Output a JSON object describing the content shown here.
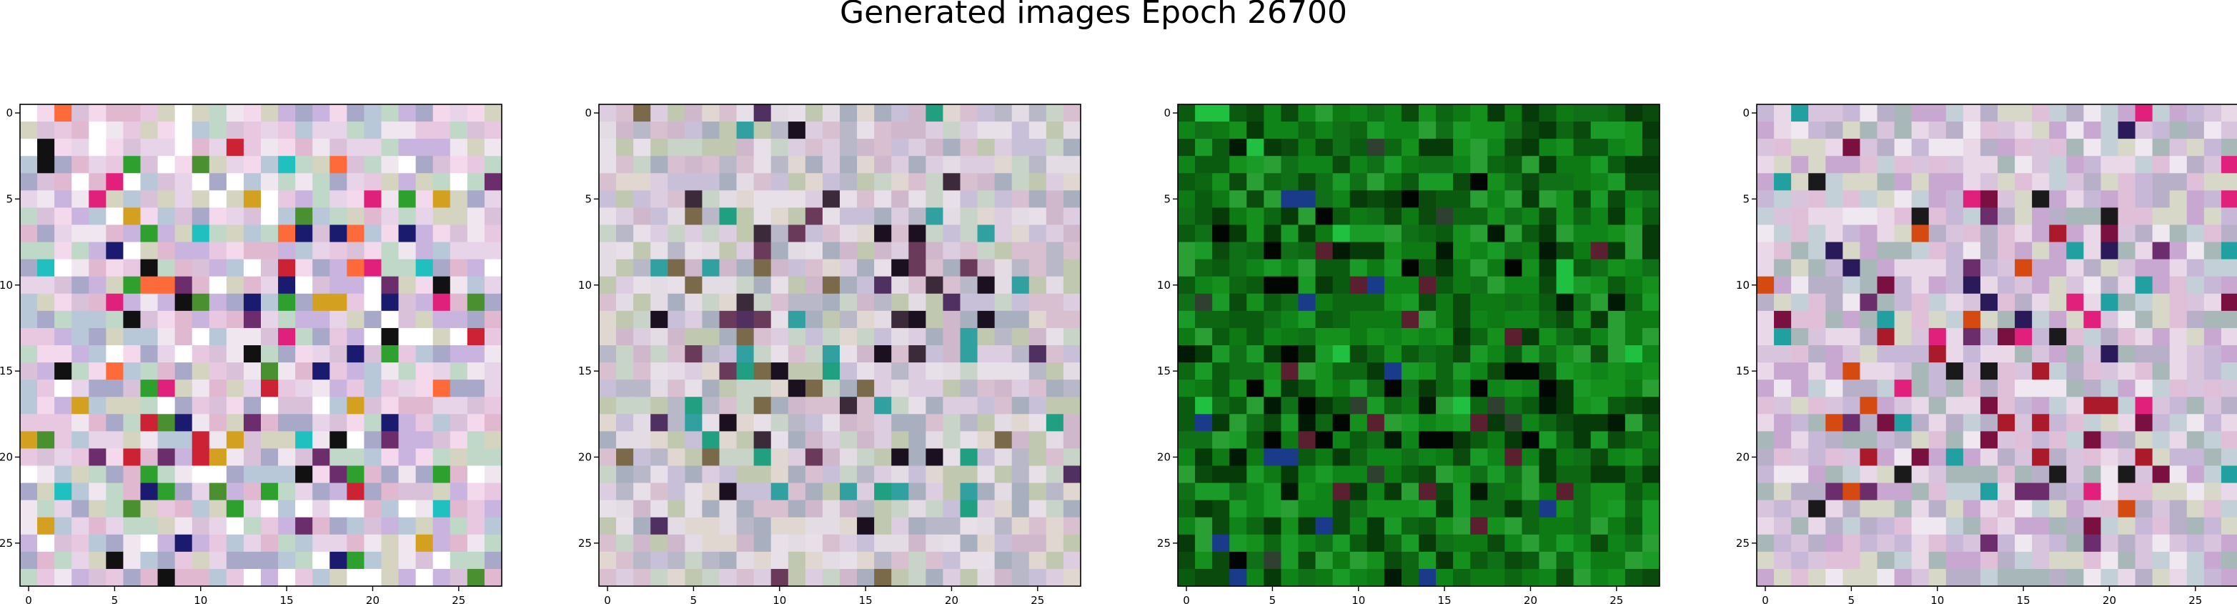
{
  "chart_data": {
    "type": "heatmap",
    "title": "Generated images Epoch 26700",
    "panels": [
      {
        "name": "",
        "xlim": [
          -0.5,
          27.5
        ],
        "ylim": [
          27.5,
          -0.5
        ],
        "xticks": [
          0,
          5,
          10,
          15,
          20,
          25
        ],
        "yticks": [
          0,
          5,
          10,
          15,
          20,
          25
        ],
        "grid": false,
        "pixel_size": [
          28,
          28
        ],
        "palette": [
          "#d9c2d9",
          "#c8b4df",
          "#e8d4e8",
          "#b8c8d8",
          "#f0e6f0",
          "#d4d4c0",
          "#e0b8d0",
          "#a8a8c8",
          "#c0d8c8",
          "#e8c8e0",
          "#ffffff",
          "#f4d8ec"
        ],
        "accents": [
          "#cc2233",
          "#1a1a6e",
          "#d4a020",
          "#2ea02e",
          "#e0207a",
          "#20c0c0",
          "#6b2d6b",
          "#111111",
          "#ff6a3a",
          "#4a9030"
        ],
        "seed": 7
      },
      {
        "name": "",
        "xlim": [
          -0.5,
          27.5
        ],
        "ylim": [
          27.5,
          -0.5
        ],
        "xticks": [
          0,
          5,
          10,
          15,
          20,
          25
        ],
        "yticks": [
          0,
          5,
          10,
          15,
          20,
          25
        ],
        "grid": false,
        "pixel_size": [
          28,
          28
        ],
        "palette": [
          "#dccde0",
          "#c8c0d8",
          "#e4dce4",
          "#c8d4c8",
          "#d8c0d0",
          "#b8b8c8",
          "#e8e0e8",
          "#c0c8b0",
          "#d0b8cc",
          "#a8b0c0",
          "#e0d8d0"
        ],
        "accents": [
          "#3a2a3a",
          "#6a3a5a",
          "#20a080",
          "#503060",
          "#1a1020",
          "#7a6a4a",
          "#30a0a0"
        ],
        "seed": 19
      },
      {
        "name": "",
        "xlim": [
          -0.5,
          27.5
        ],
        "ylim": [
          27.5,
          -0.5
        ],
        "xticks": [
          0,
          5,
          10,
          15,
          20,
          25
        ],
        "yticks": [
          0,
          5,
          10,
          15,
          20,
          25
        ],
        "grid": false,
        "pixel_size": [
          28,
          28
        ],
        "palette": [
          "#0a5a10",
          "#0e7a14",
          "#16901c",
          "#0a4a0c",
          "#107018",
          "#1a9a26",
          "#063a08",
          "#2aa034",
          "#0c6612",
          "#0f8418"
        ],
        "accents": [
          "#020602",
          "#001a06",
          "#1a3a8a",
          "#5a2030",
          "#20c040",
          "#304030"
        ],
        "seed": 31
      },
      {
        "name": "",
        "xlim": [
          -0.5,
          27.5
        ],
        "ylim": [
          27.5,
          -0.5
        ],
        "xticks": [
          0,
          5,
          10,
          15,
          20,
          25
        ],
        "yticks": [
          0,
          5,
          10,
          15,
          20,
          25
        ],
        "grid": false,
        "pixel_size": [
          28,
          28
        ],
        "palette": [
          "#d8c4dc",
          "#c8b8d8",
          "#e8d8e8",
          "#c4d0d8",
          "#e0c0d8",
          "#b8b0c8",
          "#d8d8c8",
          "#c8a8d0",
          "#f0e8f0",
          "#a8b8b8"
        ],
        "accents": [
          "#aa1a2a",
          "#e0207a",
          "#2a1a5a",
          "#d44a10",
          "#1a1a1a",
          "#6b2d6b",
          "#20a0a0",
          "#7a1040"
        ],
        "seed": 43
      }
    ]
  }
}
